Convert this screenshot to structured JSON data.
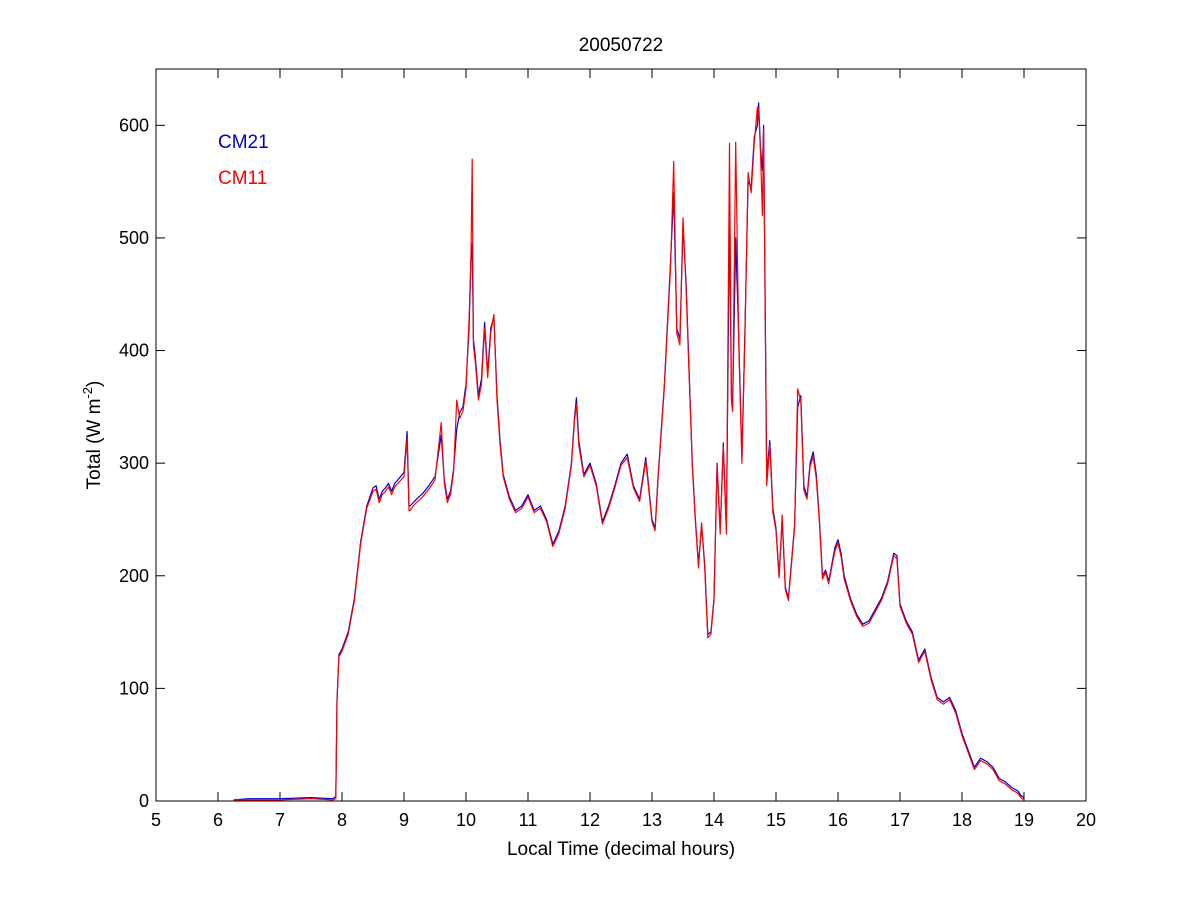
{
  "chart_data": {
    "type": "line",
    "title": "20050722",
    "xlabel": "Local Time (decimal hours)",
    "ylabel_main": "Total (W m",
    "ylabel_sup": "-2",
    "ylabel_close": ")",
    "xlim": [
      5,
      20
    ],
    "ylim": [
      0,
      650
    ],
    "xticks": [
      5,
      6,
      7,
      8,
      9,
      10,
      11,
      12,
      13,
      14,
      15,
      16,
      17,
      18,
      19,
      20
    ],
    "xtick_labels": [
      "5",
      "6",
      "7",
      "8",
      "9",
      "10",
      "11",
      "12",
      "13",
      "14",
      "15",
      "16",
      "17",
      "18",
      "19",
      "20"
    ],
    "yticks": [
      0,
      100,
      200,
      300,
      400,
      500,
      600
    ],
    "ytick_labels": [
      "0",
      "100",
      "200",
      "300",
      "400",
      "500",
      "600"
    ],
    "grid": false,
    "legend_position": "top-left",
    "series": [
      {
        "name": "CM21",
        "color": "#0000cc",
        "x": [
          6.25,
          6.5,
          7.0,
          7.5,
          7.85,
          7.9,
          7.92,
          7.95,
          8.0,
          8.1,
          8.2,
          8.3,
          8.4,
          8.5,
          8.55,
          8.6,
          8.65,
          8.7,
          8.75,
          8.8,
          8.85,
          8.9,
          9.0,
          9.05,
          9.08,
          9.1,
          9.15,
          9.2,
          9.3,
          9.4,
          9.5,
          9.6,
          9.65,
          9.7,
          9.75,
          9.8,
          9.85,
          9.9,
          9.95,
          10.0,
          10.05,
          10.08,
          10.1,
          10.12,
          10.15,
          10.2,
          10.25,
          10.3,
          10.35,
          10.4,
          10.45,
          10.5,
          10.55,
          10.6,
          10.7,
          10.8,
          10.9,
          11.0,
          11.1,
          11.2,
          11.3,
          11.4,
          11.5,
          11.6,
          11.7,
          11.75,
          11.78,
          11.82,
          11.9,
          12.0,
          12.1,
          12.2,
          12.3,
          12.4,
          12.5,
          12.6,
          12.7,
          12.8,
          12.9,
          13.0,
          13.05,
          13.1,
          13.2,
          13.3,
          13.35,
          13.4,
          13.45,
          13.5,
          13.55,
          13.6,
          13.65,
          13.7,
          13.75,
          13.8,
          13.85,
          13.9,
          13.95,
          14.0,
          14.05,
          14.1,
          14.15,
          14.2,
          14.25,
          14.28,
          14.3,
          14.35,
          14.4,
          14.45,
          14.5,
          14.55,
          14.6,
          14.65,
          14.7,
          14.72,
          14.75,
          14.78,
          14.8,
          14.85,
          14.9,
          14.95,
          15.0,
          15.05,
          15.1,
          15.15,
          15.2,
          15.3,
          15.35,
          15.4,
          15.45,
          15.5,
          15.55,
          15.6,
          15.65,
          15.7,
          15.75,
          15.8,
          15.85,
          15.9,
          15.95,
          16.0,
          16.05,
          16.1,
          16.2,
          16.3,
          16.4,
          16.5,
          16.6,
          16.7,
          16.8,
          16.9,
          16.95,
          17.0,
          17.1,
          17.2,
          17.3,
          17.4,
          17.5,
          17.6,
          17.7,
          17.8,
          17.9,
          18.0,
          18.1,
          18.2,
          18.3,
          18.4,
          18.5,
          18.6,
          18.7,
          18.8,
          18.9,
          18.95,
          19.0
        ],
        "values": [
          1,
          2,
          2,
          3,
          2,
          4,
          90,
          130,
          135,
          150,
          180,
          230,
          262,
          278,
          280,
          268,
          275,
          278,
          282,
          275,
          282,
          285,
          292,
          328,
          262,
          262,
          265,
          268,
          273,
          280,
          288,
          325,
          285,
          268,
          275,
          295,
          330,
          345,
          350,
          370,
          420,
          480,
          495,
          410,
          395,
          360,
          375,
          425,
          380,
          420,
          430,
          360,
          320,
          290,
          270,
          258,
          262,
          272,
          258,
          262,
          250,
          228,
          240,
          262,
          300,
          340,
          358,
          320,
          290,
          300,
          282,
          248,
          262,
          280,
          300,
          308,
          280,
          268,
          305,
          250,
          242,
          290,
          370,
          480,
          540,
          420,
          410,
          510,
          460,
          380,
          300,
          250,
          210,
          245,
          210,
          148,
          150,
          180,
          300,
          240,
          318,
          240,
          520,
          360,
          350,
          500,
          410,
          305,
          420,
          550,
          545,
          590,
          600,
          620,
          580,
          560,
          600,
          290,
          320,
          260,
          242,
          200,
          250,
          190,
          180,
          245,
          350,
          360,
          280,
          270,
          300,
          310,
          290,
          250,
          200,
          205,
          195,
          210,
          225,
          232,
          220,
          200,
          180,
          166,
          157,
          160,
          170,
          180,
          195,
          220,
          218,
          175,
          160,
          150,
          125,
          135,
          110,
          92,
          88,
          92,
          80,
          60,
          45,
          30,
          38,
          35,
          30,
          20,
          17,
          12,
          9,
          5,
          3
        ]
      },
      {
        "name": "CM11",
        "color": "#ff0000",
        "x": [
          6.25,
          6.5,
          7.0,
          7.5,
          7.85,
          7.9,
          7.92,
          7.95,
          8.0,
          8.1,
          8.2,
          8.3,
          8.4,
          8.5,
          8.55,
          8.6,
          8.65,
          8.7,
          8.75,
          8.8,
          8.85,
          8.9,
          9.0,
          9.05,
          9.08,
          9.1,
          9.15,
          9.2,
          9.3,
          9.4,
          9.5,
          9.6,
          9.65,
          9.7,
          9.75,
          9.8,
          9.85,
          9.9,
          9.95,
          10.0,
          10.05,
          10.08,
          10.1,
          10.12,
          10.15,
          10.2,
          10.25,
          10.3,
          10.35,
          10.4,
          10.45,
          10.5,
          10.55,
          10.6,
          10.7,
          10.8,
          10.9,
          11.0,
          11.1,
          11.2,
          11.3,
          11.4,
          11.5,
          11.6,
          11.7,
          11.75,
          11.78,
          11.82,
          11.9,
          12.0,
          12.1,
          12.2,
          12.3,
          12.4,
          12.5,
          12.6,
          12.7,
          12.8,
          12.9,
          13.0,
          13.05,
          13.1,
          13.2,
          13.3,
          13.35,
          13.4,
          13.45,
          13.5,
          13.55,
          13.6,
          13.65,
          13.7,
          13.75,
          13.8,
          13.85,
          13.9,
          13.95,
          14.0,
          14.05,
          14.1,
          14.15,
          14.2,
          14.25,
          14.28,
          14.3,
          14.35,
          14.4,
          14.45,
          14.5,
          14.55,
          14.6,
          14.65,
          14.7,
          14.72,
          14.75,
          14.78,
          14.8,
          14.85,
          14.9,
          14.95,
          15.0,
          15.05,
          15.1,
          15.15,
          15.2,
          15.3,
          15.35,
          15.4,
          15.45,
          15.5,
          15.55,
          15.6,
          15.65,
          15.7,
          15.75,
          15.8,
          15.85,
          15.9,
          15.95,
          16.0,
          16.05,
          16.1,
          16.2,
          16.3,
          16.4,
          16.5,
          16.6,
          16.7,
          16.8,
          16.9,
          16.95,
          17.0,
          17.1,
          17.2,
          17.3,
          17.4,
          17.5,
          17.6,
          17.7,
          17.8,
          17.9,
          18.0,
          18.1,
          18.2,
          18.3,
          18.4,
          18.5,
          18.6,
          18.7,
          18.8,
          18.9,
          18.95,
          19.0
        ],
        "values": [
          1,
          1,
          1,
          2,
          1,
          2,
          88,
          128,
          133,
          148,
          178,
          228,
          260,
          275,
          277,
          265,
          272,
          275,
          279,
          272,
          279,
          282,
          288,
          322,
          258,
          258,
          262,
          265,
          270,
          277,
          285,
          336,
          282,
          265,
          272,
          292,
          356,
          340,
          346,
          366,
          428,
          485,
          570,
          405,
          390,
          356,
          370,
          420,
          376,
          416,
          432,
          356,
          316,
          288,
          268,
          256,
          260,
          270,
          256,
          260,
          248,
          226,
          238,
          260,
          298,
          338,
          352,
          316,
          288,
          298,
          280,
          246,
          260,
          278,
          298,
          305,
          278,
          266,
          302,
          248,
          240,
          288,
          368,
          475,
          568,
          415,
          405,
          518,
          455,
          376,
          298,
          248,
          207,
          247,
          207,
          145,
          148,
          178,
          298,
          237,
          315,
          237,
          584,
          355,
          346,
          585,
          405,
          300,
          416,
          558,
          540,
          585,
          616,
          615,
          576,
          520,
          596,
          280,
          316,
          256,
          240,
          198,
          254,
          188,
          178,
          243,
          366,
          355,
          276,
          268,
          297,
          306,
          286,
          248,
          197,
          203,
          193,
          208,
          222,
          229,
          217,
          197,
          178,
          164,
          155,
          158,
          168,
          178,
          193,
          218,
          215,
          173,
          158,
          148,
          123,
          133,
          108,
          90,
          86,
          90,
          78,
          58,
          43,
          28,
          36,
          33,
          28,
          18,
          15,
          10,
          7,
          3,
          1
        ]
      }
    ]
  }
}
